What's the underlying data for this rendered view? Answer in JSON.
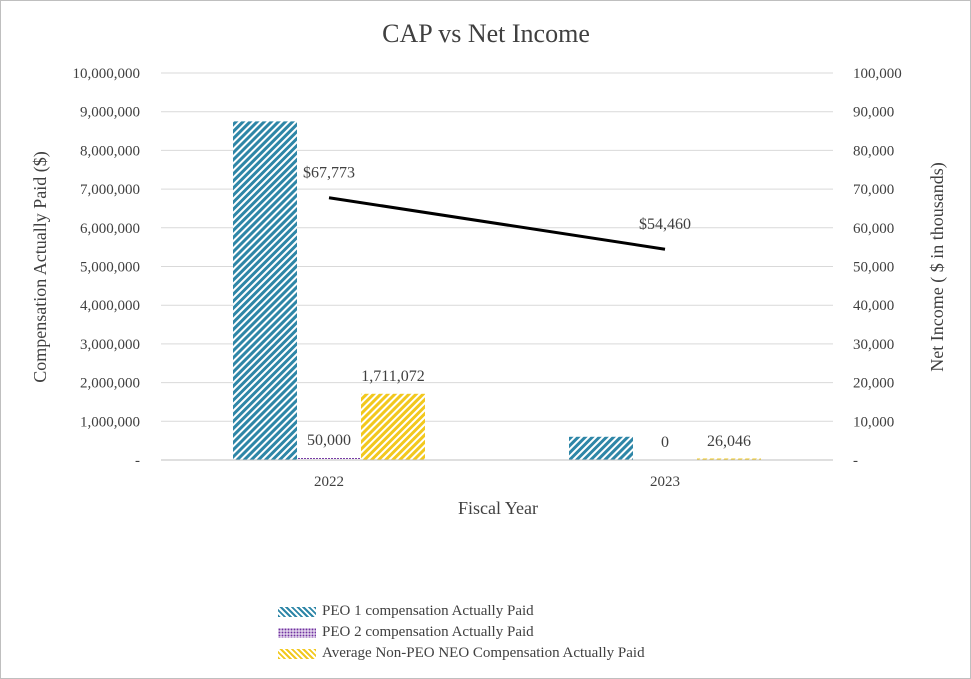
{
  "chart_data": {
    "type": "bar",
    "title": "CAP vs Net Income",
    "xlabel": "Fiscal Year",
    "ylabel": "Compensation Actually Paid ($)",
    "y2label": "Net Income ( $ in thousands)",
    "categories": [
      "2022",
      "2023"
    ],
    "ylim": [
      0,
      10000000
    ],
    "y2lim": [
      0,
      100000
    ],
    "y_ticks": [
      "-",
      "1,000,000",
      "2,000,000",
      "3,000,000",
      "4,000,000",
      "5,000,000",
      "6,000,000",
      "7,000,000",
      "8,000,000",
      "9,000,000",
      "10,000,000"
    ],
    "y2_ticks": [
      "-",
      "10,000",
      "20,000",
      "30,000",
      "40,000",
      "50,000",
      "60,000",
      "70,000",
      "80,000",
      "90,000",
      "100,000"
    ],
    "grid": true,
    "series": [
      {
        "name": "PEO 1 compensation Actually Paid",
        "color": "#2e86a7",
        "values": [
          8750000,
          600000
        ],
        "labels": [
          "",
          ""
        ]
      },
      {
        "name": "PEO 2 compensation Actually Paid",
        "color": "#7030a0",
        "values": [
          50000,
          0
        ],
        "labels": [
          "50,000",
          "0"
        ]
      },
      {
        "name": "Average Non-PEO NEO Compensation Actually Paid",
        "color": "#f2c81e",
        "values": [
          1711072,
          26046
        ],
        "labels": [
          "1,711,072",
          "26,046"
        ]
      }
    ],
    "line_series": {
      "name": "Net Income",
      "axis": "right",
      "color": "#000000",
      "values": [
        67773,
        54460
      ],
      "labels": [
        "$67,773",
        "$54,460"
      ]
    }
  }
}
